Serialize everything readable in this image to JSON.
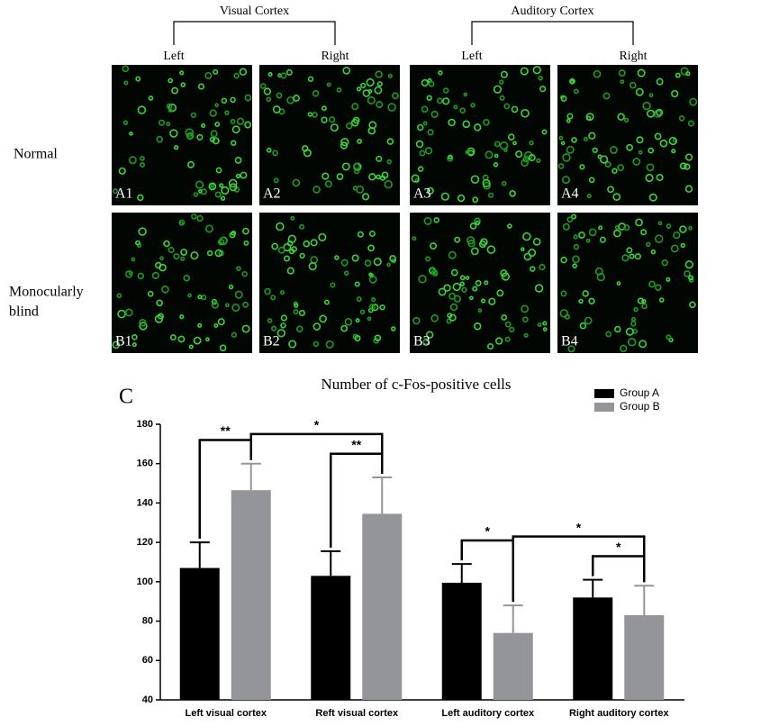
{
  "figure": {
    "groups": [
      {
        "title": "Visual Cortex",
        "sides": [
          "Left",
          "Right"
        ]
      },
      {
        "title": "Auditory Cortex",
        "sides": [
          "Left",
          "Right"
        ]
      }
    ],
    "rows": [
      {
        "label": [
          "Normal"
        ],
        "panels": [
          "A1",
          "A2",
          "A3",
          "A4"
        ]
      },
      {
        "label": [
          "Monocularly",
          "blind"
        ],
        "panels": [
          "B1",
          "B2",
          "B3",
          "B4"
        ]
      }
    ]
  },
  "chart_data": {
    "type": "bar",
    "panel_label": "C",
    "title": "Number of c-Fos-positive cells",
    "categories": [
      "Left visual cortex",
      "Reft visual cortex",
      "Left auditory cortex",
      "Right auditory cortex"
    ],
    "series": [
      {
        "name": "Group A",
        "color": "#000000",
        "values": [
          107,
          103,
          99.5,
          92
        ],
        "errors": [
          13,
          12.5,
          9.5,
          9
        ]
      },
      {
        "name": "Group B",
        "color": "#939598",
        "values": [
          146.5,
          134.5,
          74,
          83
        ],
        "errors": [
          13.5,
          18.5,
          14,
          15
        ]
      }
    ],
    "annotations": [
      "**",
      "*",
      "**",
      "*",
      "*",
      "*"
    ],
    "ylim": [
      40,
      180
    ],
    "yticks": [
      40,
      60,
      80,
      100,
      120,
      140,
      160,
      180
    ],
    "legend": "top-right"
  }
}
